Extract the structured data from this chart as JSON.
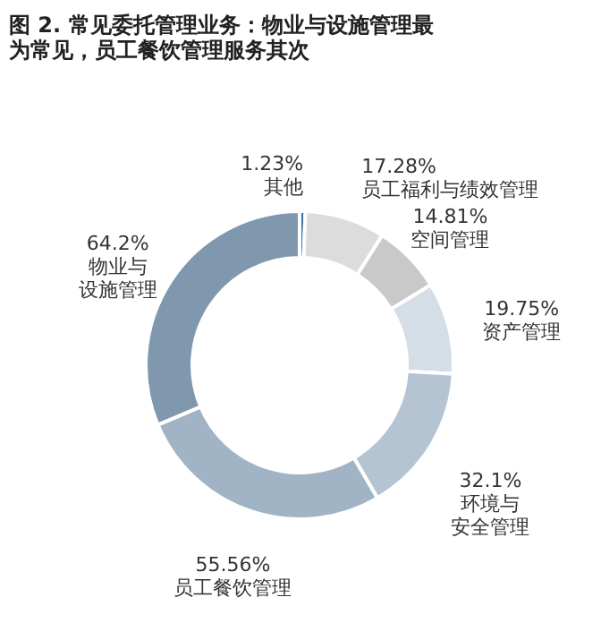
{
  "chart_data": {
    "type": "donut",
    "title": "图 2. 常见委托管理业务：物业与设施管理最为常见，员工餐饮管理服务其次",
    "categories": [
      "其他",
      "员工福利与绩效管理",
      "空间管理",
      "资产管理",
      "环境与安全管理",
      "员工餐饮管理",
      "物业与设施管理"
    ],
    "values": [
      1.23,
      17.28,
      14.81,
      19.75,
      32.1,
      55.56,
      64.2
    ],
    "value_labels": [
      "1.23%",
      "17.28%",
      "14.81%",
      "19.75%",
      "32.1%",
      "55.56%",
      "64.2%"
    ],
    "colors": [
      "#3d6fa6",
      "#dcdcdc",
      "#c9c9c9",
      "#d5dee6",
      "#b4c4d2",
      "#a0b4c6",
      "#7f98ae"
    ],
    "legend": false
  }
}
